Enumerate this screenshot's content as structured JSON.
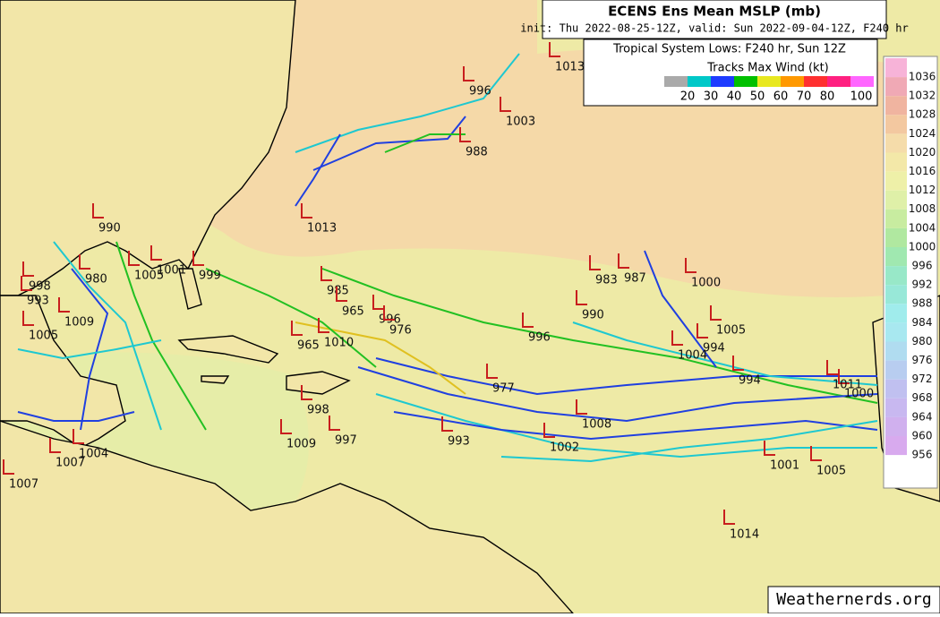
{
  "header": {
    "title": "ECENS Ens Mean MSLP (mb)",
    "subtitle": "init: Thu 2022-08-25-12Z, valid: Sun 2022-09-04-12Z, F240 hr"
  },
  "legend": {
    "title": "Tropical System Lows: F240 hr, Sun 12Z",
    "wind_title": "Tracks Max Wind (kt)",
    "wind_labels": [
      20,
      30,
      40,
      50,
      60,
      70,
      80,
      100
    ]
  },
  "colorbar": {
    "labels": [
      1036,
      1032,
      1028,
      1024,
      1020,
      1016,
      1012,
      1008,
      1004,
      1000,
      996,
      992,
      988,
      984,
      980,
      976,
      972,
      968,
      964,
      960,
      956
    ]
  },
  "lows": [
    1013,
    996,
    1003,
    988,
    1013,
    990,
    980,
    1001,
    1005,
    999,
    998,
    993,
    1009,
    1005,
    985,
    965,
    996,
    976,
    965,
    1010,
    977,
    996,
    990,
    983,
    987,
    1000,
    1005,
    994,
    1004,
    994,
    1000,
    1011,
    998,
    997,
    1009,
    993,
    1002,
    1008,
    1007,
    1004,
    1007,
    1014,
    1005,
    1001
  ],
  "footer": {
    "watermark": "Weathernerds.org"
  }
}
